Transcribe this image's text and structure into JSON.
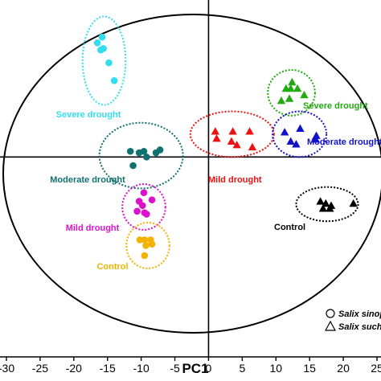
{
  "chart_data": {
    "type": "scatter",
    "xlabel": "PC1",
    "ylabel": "",
    "xlim": [
      -30,
      25
    ],
    "ylim": [
      -28,
      22
    ],
    "x_ticks": [
      "-30",
      "-25",
      "-20",
      "-15",
      "-10",
      "-5",
      "0",
      "5",
      "10",
      "15",
      "20",
      "25"
    ],
    "legend": [
      {
        "shape": "circle",
        "label": "Salix sinop"
      },
      {
        "shape": "triangle",
        "label": "Salix suche"
      }
    ],
    "groups": [
      {
        "label": "Severe drought",
        "color": "#33ddee",
        "shape": "circle",
        "ellipse": {
          "cx": -15.5,
          "cy": 13.5,
          "rx": 3.2,
          "ry": 6.2
        },
        "points": [
          [
            -16.5,
            16
          ],
          [
            -16,
            15
          ],
          [
            -15.6,
            15.2
          ],
          [
            -14.8,
            13.2
          ],
          [
            -14,
            10.7
          ],
          [
            -15.8,
            16.8
          ]
        ]
      },
      {
        "label": "Moderate drought",
        "color": "#117070",
        "shape": "circle",
        "ellipse": {
          "cx": -10,
          "cy": 0.2,
          "rx": 6.2,
          "ry": 4.6
        },
        "points": [
          [
            -11.6,
            0.8
          ],
          [
            -10.3,
            0.6
          ],
          [
            -9.6,
            0.8
          ],
          [
            -7.8,
            0.6
          ],
          [
            -7.2,
            1.0
          ],
          [
            -11.2,
            -1.2
          ],
          [
            -9.2,
            0
          ]
        ]
      },
      {
        "label": "Mild drought",
        "color": "#dd11cc",
        "shape": "circle",
        "ellipse": {
          "cx": -9.6,
          "cy": -7.0,
          "rx": 3.2,
          "ry": 3.2
        },
        "points": [
          [
            -9.6,
            -5.0
          ],
          [
            -10.3,
            -6.2
          ],
          [
            -9.8,
            -6.8
          ],
          [
            -9.5,
            -7.8
          ],
          [
            -10.6,
            -7.6
          ],
          [
            -9.2,
            -8.0
          ],
          [
            -8.4,
            -6.0
          ]
        ]
      },
      {
        "label": "Control",
        "color": "#f2b300",
        "shape": "circle",
        "ellipse": {
          "cx": -9.0,
          "cy": -12.4,
          "rx": 3.2,
          "ry": 3.2
        },
        "points": [
          [
            -10.2,
            -11.6
          ],
          [
            -9.5,
            -11.6
          ],
          [
            -8.6,
            -11.6
          ],
          [
            -8.4,
            -12.2
          ],
          [
            -9.3,
            -12.4
          ],
          [
            -9.5,
            -13.8
          ]
        ]
      },
      {
        "label": "Severe drought",
        "color": "#22aa11",
        "shape": "triangle",
        "ellipse": {
          "cx": 12.3,
          "cy": 9.0,
          "rx": 3.5,
          "ry": 3.2
        },
        "points": [
          [
            11.5,
            9.6
          ],
          [
            12.2,
            9.6
          ],
          [
            13.2,
            9.6
          ],
          [
            14.2,
            8.7
          ],
          [
            12.0,
            8.2
          ],
          [
            10.8,
            7.9
          ],
          [
            12.4,
            10.5
          ]
        ]
      },
      {
        "label": "Mild drought",
        "color": "#ee1111",
        "shape": "triangle",
        "ellipse": {
          "cx": 3.5,
          "cy": 3.2,
          "rx": 6.2,
          "ry": 3.2
        },
        "points": [
          [
            1.0,
            3.6
          ],
          [
            1.2,
            2.6
          ],
          [
            3.6,
            3.6
          ],
          [
            6.1,
            3.6
          ],
          [
            4.2,
            1.7
          ],
          [
            6.5,
            1.4
          ],
          [
            3.4,
            2.2
          ]
        ]
      },
      {
        "label": "Moderate drought",
        "color": "#1111cc",
        "shape": "triangle",
        "ellipse": {
          "cx": 13.5,
          "cy": 3.2,
          "rx": 4.0,
          "ry": 3.2
        },
        "points": [
          [
            11.3,
            3.5
          ],
          [
            12.2,
            2.2
          ],
          [
            15.9,
            2.5
          ],
          [
            13.6,
            4.0
          ],
          [
            13.0,
            1.8
          ],
          [
            16.0,
            3.0
          ]
        ]
      },
      {
        "label": "Control",
        "color": "#000000",
        "shape": "triangle",
        "ellipse": {
          "cx": 17.6,
          "cy": -6.6,
          "rx": 4.6,
          "ry": 2.4
        },
        "points": [
          [
            16.6,
            -6.2
          ],
          [
            17.4,
            -6.5
          ],
          [
            18.2,
            -6.8
          ],
          [
            17.0,
            -7.2
          ],
          [
            18.0,
            -7.2
          ],
          [
            21.5,
            -6.5
          ]
        ]
      }
    ],
    "grid": false
  }
}
